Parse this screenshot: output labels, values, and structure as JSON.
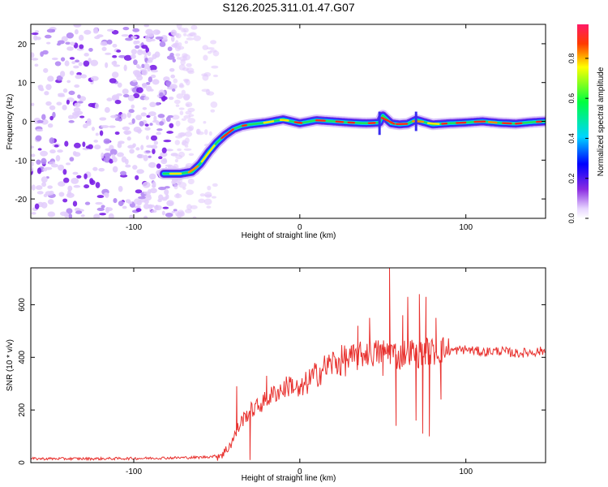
{
  "figure": {
    "title": "S126.2025.311.01.47.G07"
  },
  "chart_data": [
    {
      "type": "heatmap",
      "panel": "spectrogram",
      "title": "S126.2025.311.01.47.G07",
      "xlabel": "Height of straight line (km)",
      "ylabel": "Frequency (Hz)",
      "xlim": [
        -162,
        148
      ],
      "ylim": [
        -25,
        25
      ],
      "x_ticks": [
        -100,
        0,
        100
      ],
      "x_tick_labels": [
        "-100",
        "0",
        "100"
      ],
      "y_ticks": [
        -20,
        -10,
        0,
        10,
        20
      ],
      "y_tick_labels": [
        "-20",
        "-10",
        "0",
        "10",
        "20"
      ],
      "colorbar": {
        "label": "Normalized spectral amplitude",
        "range": [
          0,
          0.97
        ],
        "ticks": [
          0,
          0.2,
          0.4,
          0.6,
          0.8
        ],
        "tick_labels": [
          "0.0",
          "0.2",
          "0.4",
          "0.6",
          "0.8"
        ],
        "colormap": [
          "#ffffff",
          "#e7d6ff",
          "#8a2be2",
          "#0000ff",
          "#00d5ff",
          "#00ff40",
          "#ffff00",
          "#ff3b00",
          "#ff1a66"
        ]
      },
      "noise_region_x": [
        -162,
        -65
      ],
      "ridge": {
        "name": "Dominant frequency",
        "x": [
          -82,
          -72,
          -65,
          -60,
          -55,
          -50,
          -45,
          -40,
          -35,
          -30,
          -20,
          -10,
          0,
          10,
          20,
          30,
          40,
          45,
          48,
          50,
          55,
          60,
          65,
          70,
          80,
          90,
          100,
          110,
          120,
          130,
          140,
          148
        ],
        "y": [
          -13.5,
          -13.5,
          -13.0,
          -11.0,
          -8.0,
          -5.5,
          -3.5,
          -2.0,
          -1.2,
          -0.8,
          -0.3,
          0.5,
          -0.5,
          0.3,
          0.0,
          -0.3,
          -0.5,
          -0.4,
          -0.3,
          1.5,
          -0.5,
          -0.8,
          -0.6,
          0.4,
          -0.8,
          -0.5,
          -0.3,
          0.0,
          -0.4,
          -0.6,
          -0.2,
          0.0
        ]
      }
    },
    {
      "type": "line",
      "panel": "snr",
      "xlabel": "Height of straight line (km)",
      "ylabel": "SNR (10 * v/v)",
      "xlim": [
        -162,
        148
      ],
      "ylim": [
        0,
        740
      ],
      "x_ticks": [
        -100,
        0,
        100
      ],
      "x_tick_labels": [
        "-100",
        "0",
        "100"
      ],
      "y_ticks": [
        0,
        200,
        400,
        600
      ],
      "y_tick_labels": [
        "0",
        "200",
        "400",
        "600"
      ],
      "series": [
        {
          "name": "SNR",
          "color": "#e8312e",
          "x": [
            -162,
            -140,
            -120,
            -100,
            -80,
            -60,
            -50,
            -45,
            -40,
            -35,
            -30,
            -25,
            -20,
            -15,
            -10,
            -5,
            0,
            5,
            10,
            15,
            20,
            25,
            30,
            35,
            40,
            45,
            50,
            55,
            60,
            65,
            70,
            75,
            80,
            85,
            90,
            100,
            110,
            120,
            130,
            140,
            148
          ],
          "values": [
            15,
            15,
            15,
            16,
            18,
            20,
            25,
            40,
            90,
            160,
            195,
            215,
            240,
            265,
            280,
            300,
            265,
            310,
            335,
            360,
            380,
            385,
            395,
            400,
            420,
            415,
            420,
            425,
            400,
            430,
            410,
            425,
            420,
            430,
            425,
            430,
            420,
            425,
            415,
            420,
            425
          ]
        }
      ],
      "spikes": [
        {
          "x": -38,
          "value": 290
        },
        {
          "x": -30,
          "value": 10
        },
        {
          "x": -20,
          "value": 330
        },
        {
          "x": 35,
          "value": 520
        },
        {
          "x": 42,
          "value": 550
        },
        {
          "x": 50,
          "value": 330
        },
        {
          "x": 54,
          "value": 740
        },
        {
          "x": 58,
          "value": 140
        },
        {
          "x": 62,
          "value": 560
        },
        {
          "x": 65,
          "value": 630
        },
        {
          "x": 70,
          "value": 160
        },
        {
          "x": 72,
          "value": 640
        },
        {
          "x": 74,
          "value": 110
        },
        {
          "x": 76,
          "value": 630
        },
        {
          "x": 78,
          "value": 100
        },
        {
          "x": 82,
          "value": 550
        },
        {
          "x": 85,
          "value": 240
        }
      ]
    }
  ]
}
